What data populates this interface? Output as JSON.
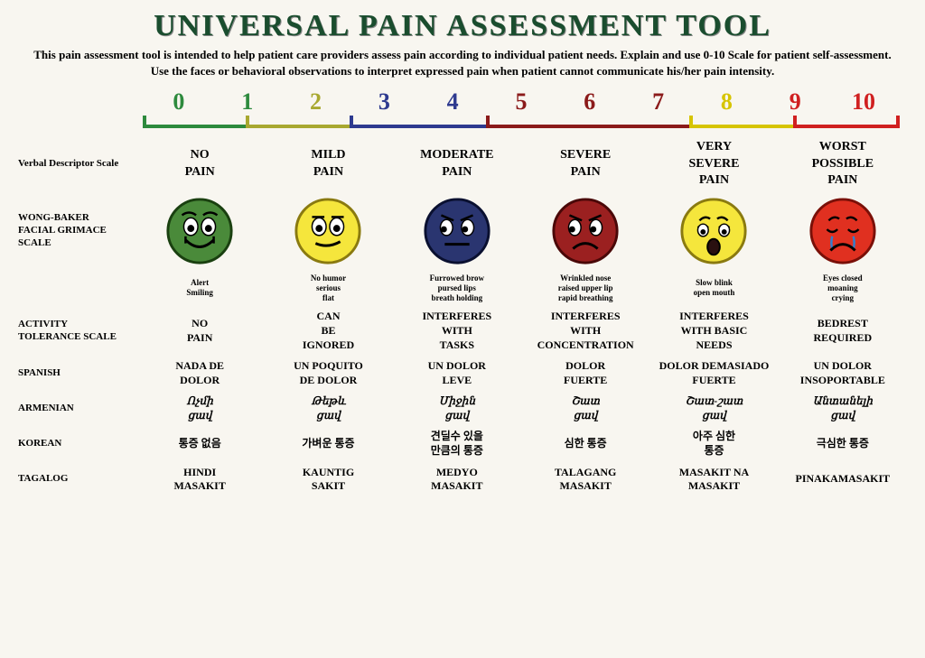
{
  "title": "UNIVERSAL PAIN ASSESSMENT TOOL",
  "subtitle": "This pain assessment tool is intended to help patient care providers assess pain according to individual patient needs.\nExplain and use 0-10 Scale for patient self-assessment. Use the faces or behavioral observations to interpret\nexpressed pain when patient cannot communicate his/her pain intensity.",
  "scale_numbers": [
    "0",
    "1",
    "2",
    "3",
    "4",
    "5",
    "6",
    "7",
    "8",
    "9",
    "10"
  ],
  "scale_number_colors": [
    "#2d8a3d",
    "#2d8a3d",
    "#a8a830",
    "#2e3a8f",
    "#2e3a8f",
    "#8b1a1a",
    "#8b1a1a",
    "#8b1a1a",
    "#d6c400",
    "#d02020",
    "#d02020"
  ],
  "bracket_ranges": [
    {
      "span": 1.5,
      "color": "#2d8a3d"
    },
    {
      "span": 1.5,
      "color": "#a8a830"
    },
    {
      "span": 2,
      "color": "#2e3a8f"
    },
    {
      "span": 3,
      "color": "#8b1a1a"
    },
    {
      "span": 1.5,
      "color": "#d6c400"
    },
    {
      "span": 1.5,
      "color": "#d02020"
    }
  ],
  "rows": {
    "verbal": {
      "label": "Verbal\nDescriptor\nScale",
      "cells": [
        "NO\nPAIN",
        "MILD\nPAIN",
        "MODERATE\nPAIN",
        "SEVERE\nPAIN",
        "VERY\nSEVERE\nPAIN",
        "WORST\nPOSSIBLE\nPAIN"
      ]
    },
    "wong": {
      "label": "WONG-BAKER\nFACIAL\nGRIMACE SCALE"
    },
    "facedesc": {
      "cells": [
        "Alert\nSmiling",
        "No humor\nserious\nflat",
        "Furrowed brow\npursed lips\nbreath holding",
        "Wrinkled nose\nraised upper lip\nrapid breathing",
        "Slow blink\nopen mouth",
        "Eyes closed\nmoaning\ncrying"
      ]
    },
    "activity": {
      "label": "ACTIVITY\nTOLERANCE\nSCALE",
      "cells": [
        "NO\nPAIN",
        "CAN\nBE\nIGNORED",
        "INTERFERES\nWITH\nTASKS",
        "INTERFERES\nWITH\nCONCENTRATION",
        "INTERFERES\nWITH BASIC\nNEEDS",
        "BEDREST\nREQUIRED"
      ]
    },
    "spanish": {
      "label": "SPANISH",
      "cells": [
        "NADA DE\nDOLOR",
        "UN POQUITO\nDE DOLOR",
        "UN DOLOR\nLEVE",
        "DOLOR\nFUERTE",
        "DOLOR DEMASIADO\nFUERTE",
        "UN DOLOR\nINSOPORTABLE"
      ]
    },
    "armenian": {
      "label": "ARMENIAN",
      "cells": [
        "Ոչմի\nցավ",
        "Թեթև\nցավ",
        "Միջին\nցավ",
        "Շատ\nցավ",
        "Շատ-շատ\nցավ",
        "Անտանելի\nցավ"
      ]
    },
    "korean": {
      "label": "KOREAN",
      "cells": [
        "통증 없음",
        "가벼운 통증",
        "견딜수 있을\n만큼의 통증",
        "심한 통증",
        "아주 심한\n통증",
        "극심한 통증"
      ]
    },
    "tagalog": {
      "label": "TAGALOG",
      "cells": [
        "HINDI\nMASAKIT",
        "KAUNTIG\nSAKIT",
        "MEDYO\nMASAKIT",
        "TALAGANG\nMASAKIT",
        "MASAKIT NA\nMASAKIT",
        "PINAKAMASAKIT"
      ]
    }
  },
  "faces": [
    {
      "fill": "#4a8a3a",
      "stroke": "#1a4010",
      "mouth": "smile",
      "eyes": "open",
      "brow": "up"
    },
    {
      "fill": "#f5e63c",
      "stroke": "#8a7a10",
      "mouth": "slight",
      "eyes": "open",
      "brow": "flat"
    },
    {
      "fill": "#2a3570",
      "stroke": "#0a1030",
      "mouth": "flat",
      "eyes": "side",
      "brow": "down"
    },
    {
      "fill": "#9b2020",
      "stroke": "#4a0808",
      "mouth": "frown",
      "eyes": "side",
      "brow": "down"
    },
    {
      "fill": "#f5e63c",
      "stroke": "#8a7a10",
      "mouth": "open",
      "eyes": "droop",
      "brow": "sad"
    },
    {
      "fill": "#e03020",
      "stroke": "#7a1008",
      "mouth": "cry",
      "eyes": "closed",
      "brow": "sad",
      "tears": true
    }
  ]
}
